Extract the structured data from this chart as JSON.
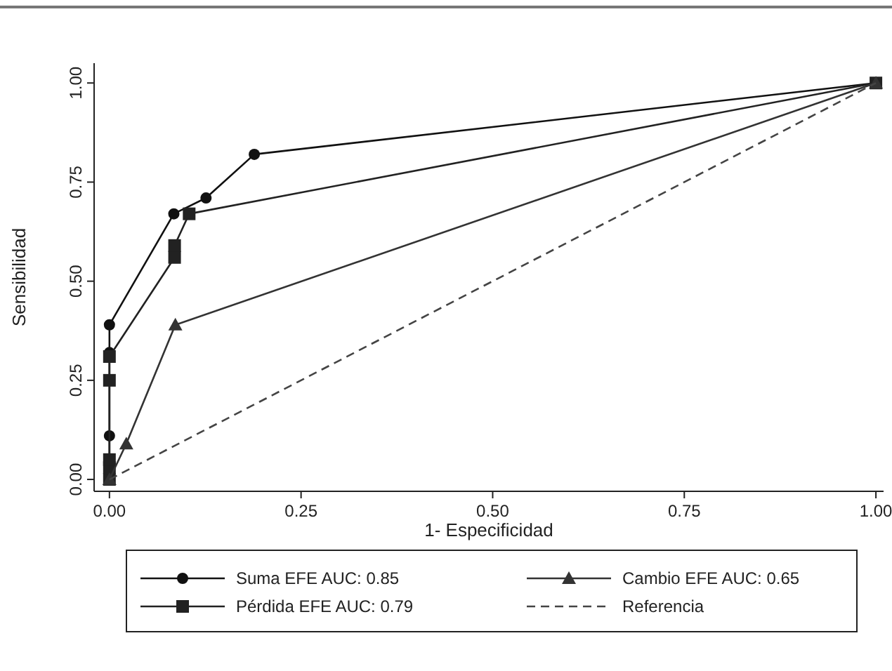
{
  "chart_data": {
    "type": "line",
    "xlabel": "1- Especificidad",
    "ylabel": "Sensibilidad",
    "xlim": [
      -0.02,
      1.01
    ],
    "ylim": [
      -0.03,
      1.05
    ],
    "xticks": [
      {
        "value": 0,
        "label": "0.00"
      },
      {
        "value": 0.25,
        "label": "0.25"
      },
      {
        "value": 0.5,
        "label": "0.50"
      },
      {
        "value": 0.75,
        "label": "0.75"
      },
      {
        "value": 1,
        "label": "1.00"
      }
    ],
    "yticks": [
      {
        "value": 0,
        "label": "0.00"
      },
      {
        "value": 0.25,
        "label": "0.25"
      },
      {
        "value": 0.5,
        "label": "0.50"
      },
      {
        "value": 0.75,
        "label": "0.75"
      },
      {
        "value": 1,
        "label": "1.00"
      }
    ],
    "grid": false,
    "legend": "bottom",
    "series": [
      {
        "name": "Suma EFE AUC: 0.85",
        "color": "#111111",
        "marker": "circle",
        "line_style": "solid",
        "x": [
          0,
          0,
          0,
          0,
          0,
          0,
          0.084,
          0.126,
          0.189,
          1
        ],
        "values": [
          0,
          0.02,
          0.04,
          0.11,
          0.32,
          0.39,
          0.67,
          0.71,
          0.82,
          1
        ]
      },
      {
        "name": "Pérdida EFE AUC: 0.79",
        "color": "#222222",
        "marker": "square",
        "line_style": "solid",
        "x": [
          0,
          0,
          0,
          0,
          0,
          0.085,
          0.085,
          0.104,
          1
        ],
        "values": [
          0,
          0.03,
          0.05,
          0.25,
          0.31,
          0.56,
          0.59,
          0.67,
          1
        ]
      },
      {
        "name": "Cambio EFE AUC: 0.65",
        "color": "#333333",
        "marker": "triangle",
        "line_style": "solid",
        "x": [
          0,
          0.022,
          0.086,
          1
        ],
        "values": [
          0,
          0.09,
          0.39,
          1
        ]
      },
      {
        "name": "Referencia",
        "color": "#444444",
        "marker": "none",
        "line_style": "dashed",
        "x": [
          0,
          1
        ],
        "values": [
          0,
          1
        ]
      }
    ]
  }
}
